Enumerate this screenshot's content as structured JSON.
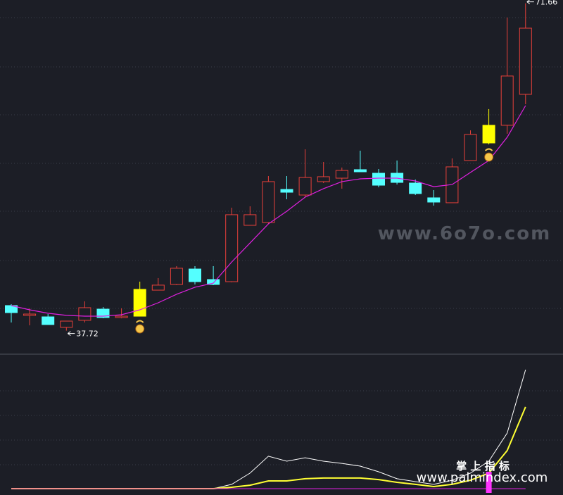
{
  "chart_data": [
    {
      "type": "candlestick",
      "ylim": [
        35.5,
        72
      ],
      "up_color": "#e8403a",
      "down_color": "#54ffff",
      "signal_color": "#ffff00",
      "signal_indices": [
        7,
        26
      ],
      "open": [
        40.32,
        39.3,
        39.15,
        38.06,
        38.79,
        39.95,
        39.08,
        39.22,
        41.92,
        42.51,
        44.11,
        43.02,
        42.8,
        48.64,
        48.93,
        52.36,
        51.78,
        53.17,
        53.53,
        54.41,
        54.04,
        54.04,
        53.02,
        51.49,
        50.98,
        55.36,
        57.18,
        59.01,
        62.22
      ],
      "high": [
        40.46,
        40.03,
        39.44,
        38.71,
        40.76,
        40.17,
        40.03,
        42.8,
        43.17,
        44.41,
        44.41,
        44.41,
        50.47,
        50.61,
        53.75,
        53.75,
        56.52,
        55.21,
        54.63,
        56.38,
        54.48,
        55.36,
        53.39,
        52.29,
        55.58,
        58.49,
        60.69,
        70.18,
        71.66
      ],
      "low": [
        38.57,
        38.27,
        38.35,
        37.72,
        38.57,
        39.0,
        39.0,
        39.22,
        41.92,
        42.44,
        42.51,
        42.44,
        42.73,
        48.64,
        48.78,
        51.34,
        51.56,
        53.02,
        52.44,
        54.19,
        52.58,
        52.87,
        51.78,
        50.68,
        50.98,
        55.36,
        57.03,
        58.13,
        61.2
      ],
      "close": [
        39.59,
        39.44,
        38.35,
        38.71,
        40.1,
        39.08,
        39.22,
        42.0,
        42.44,
        44.19,
        42.8,
        42.51,
        49.74,
        49.74,
        53.17,
        52.07,
        53.6,
        53.68,
        54.33,
        54.19,
        52.8,
        53.09,
        51.93,
        51.05,
        54.7,
        58.06,
        59.01,
        64.12,
        69.08
      ],
      "ma": {
        "color": "#e020e0",
        "values": [
          40.32,
          39.88,
          39.52,
          39.3,
          39.22,
          39.22,
          39.37,
          39.88,
          40.61,
          41.49,
          42.22,
          42.65,
          44.84,
          46.81,
          48.79,
          50.1,
          51.56,
          52.44,
          53.17,
          53.46,
          53.53,
          53.53,
          53.24,
          52.65,
          52.87,
          54.12,
          55.36,
          57.77,
          61.05
        ]
      }
    },
    {
      "type": "line",
      "ylim": [
        0,
        100
      ],
      "series": [
        {
          "color": "#ffffff",
          "values": [
            3.1,
            3.1,
            3.1,
            3.1,
            3.1,
            3.1,
            3.1,
            3.1,
            3.1,
            3.1,
            3.1,
            3.1,
            6.2,
            14.4,
            26.7,
            23.1,
            25.6,
            23.1,
            21.5,
            19.5,
            15.4,
            10.3,
            8.2,
            6.2,
            9.2,
            14.4,
            23.1,
            43.6,
            89.7
          ]
        },
        {
          "color": "#ffff33",
          "values": [
            3.1,
            3.1,
            3.1,
            3.1,
            3.1,
            3.1,
            3.1,
            3.1,
            3.1,
            3.1,
            3.1,
            3.1,
            4.1,
            5.6,
            8.7,
            8.7,
            10.3,
            10.8,
            10.8,
            10.8,
            9.7,
            7.7,
            6.2,
            4.6,
            6.2,
            9.2,
            14.4,
            30.8,
            62.6
          ]
        },
        {
          "color": "#e020e0",
          "values": [
            3.1,
            3.1,
            3.1,
            3.1,
            3.1,
            3.1,
            3.1,
            3.1,
            3.1,
            3.1,
            3.1,
            3.1,
            3.1,
            3.1,
            3.1,
            3.1,
            3.1,
            3.1,
            3.1,
            3.1,
            3.1,
            3.1,
            3.1,
            3.1,
            3.1,
            3.1,
            3.1,
            3.1,
            3.1
          ]
        },
        {
          "type": "bar",
          "color": "#ff33ff",
          "values": [
            null,
            null,
            null,
            null,
            null,
            null,
            null,
            null,
            null,
            null,
            null,
            null,
            null,
            null,
            null,
            null,
            null,
            null,
            null,
            null,
            null,
            null,
            null,
            null,
            null,
            null,
            15.4,
            null,
            null
          ]
        }
      ]
    }
  ],
  "watermarks": [
    "www.6o7o.com",
    "掌 上 指 标",
    "www.palmindex.com"
  ]
}
